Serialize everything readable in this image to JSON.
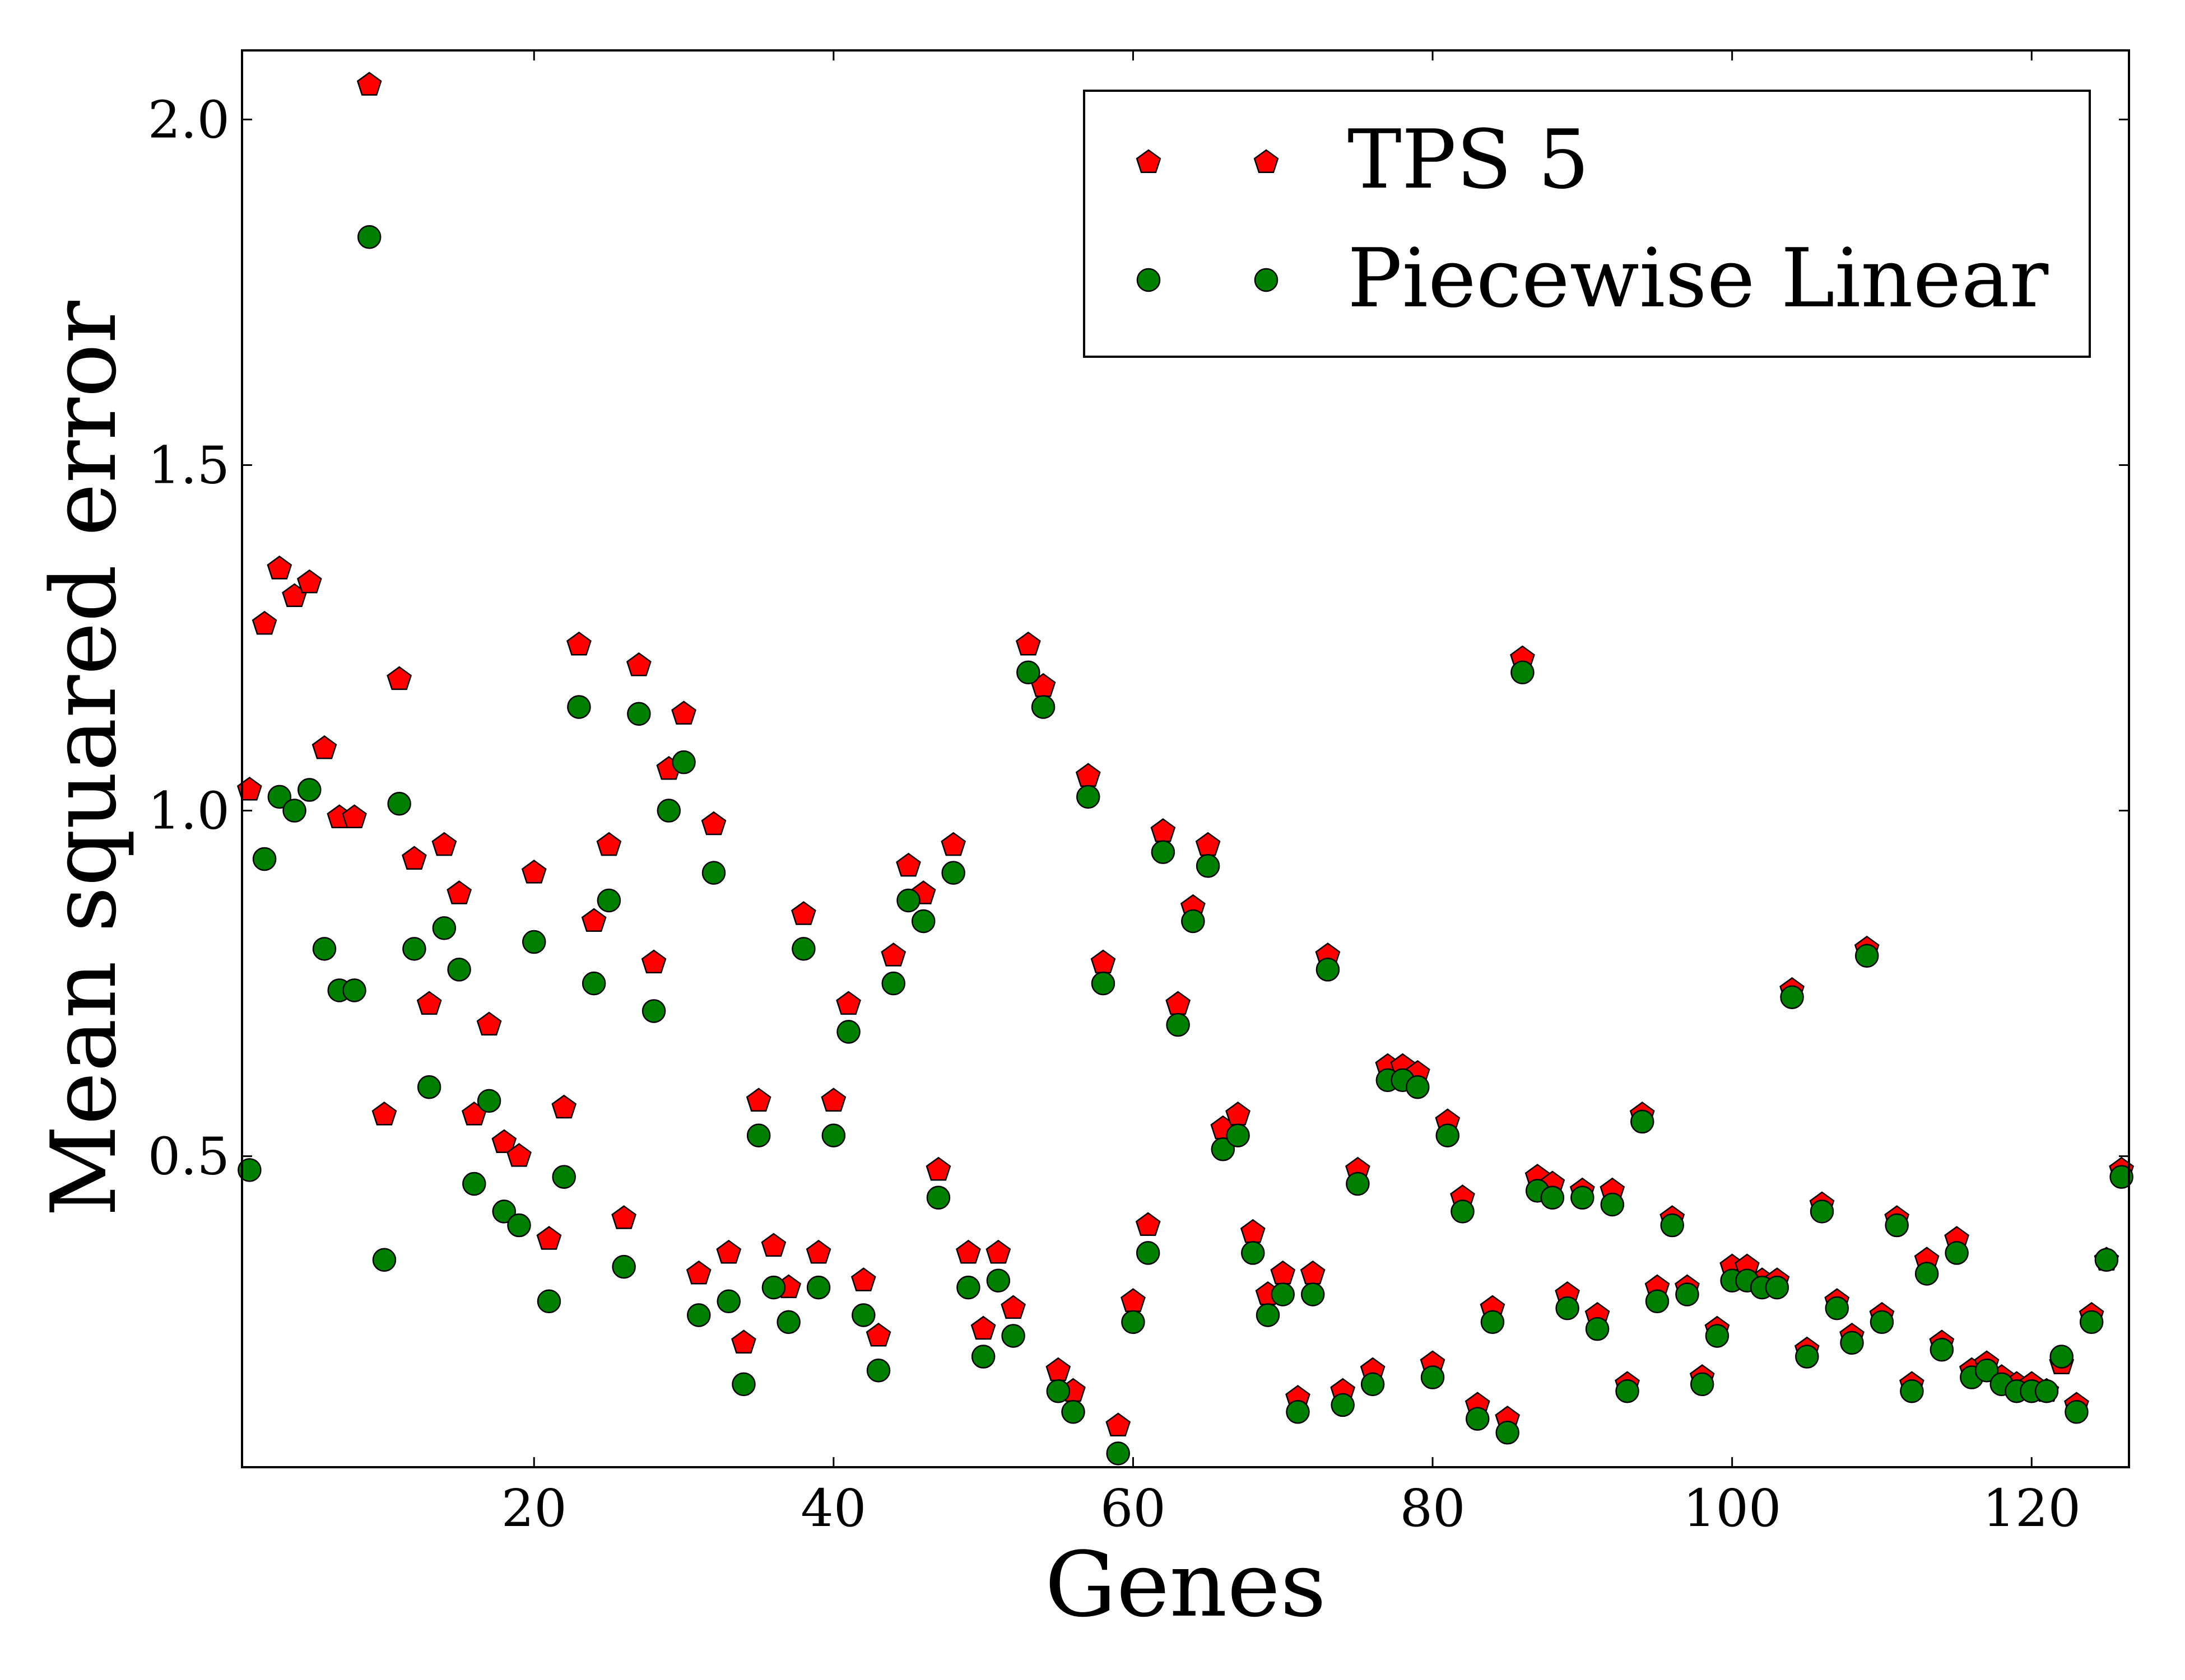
{
  "chart_data": {
    "type": "scatter",
    "xlabel": "Genes",
    "ylabel": "Mean squared error",
    "xlim": [
      0.5,
      126.5
    ],
    "ylim": [
      0.05,
      2.1
    ],
    "xticks": [
      20,
      40,
      60,
      80,
      100,
      120
    ],
    "yticks": [
      0.5,
      1.0,
      1.5,
      2.0
    ],
    "xtick_labels": [
      "20",
      "40",
      "60",
      "80",
      "100",
      "120"
    ],
    "ytick_labels": [
      "0.5",
      "1.0",
      "1.5",
      "2.0"
    ],
    "grid": false,
    "legend_position": "top-right",
    "series": [
      {
        "name": "TPS 5",
        "marker": "pentagon",
        "color": "#ff0000",
        "x": [
          1,
          2,
          3,
          4,
          5,
          6,
          7,
          8,
          9,
          10,
          11,
          12,
          13,
          14,
          15,
          16,
          17,
          18,
          19,
          20,
          21,
          22,
          23,
          24,
          25,
          26,
          27,
          28,
          29,
          30,
          31,
          32,
          33,
          34,
          35,
          36,
          37,
          38,
          39,
          40,
          41,
          42,
          43,
          44,
          45,
          46,
          47,
          48,
          49,
          50,
          51,
          52,
          53,
          54,
          55,
          56,
          57,
          58,
          59,
          60,
          61,
          62,
          63,
          64,
          65,
          66,
          67,
          68,
          69,
          70,
          71,
          72,
          73,
          74,
          75,
          76,
          77,
          78,
          79,
          80,
          81,
          82,
          83,
          84,
          85,
          86,
          87,
          88,
          89,
          90,
          91,
          92,
          93,
          94,
          95,
          96,
          97,
          98,
          99,
          100,
          101,
          102,
          103,
          104,
          105,
          106,
          107,
          108,
          109,
          110,
          111,
          112,
          113,
          114,
          115,
          116,
          117,
          118,
          119,
          120,
          121,
          122,
          123,
          124,
          125,
          126
        ],
        "y": [
          1.03,
          1.27,
          1.35,
          1.31,
          1.33,
          1.09,
          0.99,
          0.99,
          2.05,
          0.56,
          1.19,
          0.93,
          0.72,
          0.95,
          0.88,
          0.56,
          0.69,
          0.52,
          0.5,
          0.91,
          0.38,
          0.57,
          1.24,
          0.84,
          0.95,
          0.41,
          1.21,
          0.78,
          1.06,
          1.14,
          0.33,
          0.98,
          0.36,
          0.23,
          0.58,
          0.37,
          0.31,
          0.85,
          0.36,
          0.58,
          0.72,
          0.32,
          0.24,
          0.79,
          0.92,
          0.88,
          0.48,
          0.95,
          0.36,
          0.25,
          0.36,
          0.28,
          1.24,
          1.18,
          0.19,
          0.16,
          1.05,
          0.78,
          0.11,
          0.29,
          0.4,
          0.97,
          0.72,
          0.86,
          0.95,
          0.54,
          0.56,
          0.39,
          0.3,
          0.33,
          0.15,
          0.33,
          0.79,
          0.16,
          0.48,
          0.19,
          0.63,
          0.63,
          0.62,
          0.2,
          0.55,
          0.44,
          0.14,
          0.28,
          0.12,
          1.22,
          0.47,
          0.46,
          0.3,
          0.45,
          0.27,
          0.45,
          0.17,
          0.56,
          0.31,
          0.41,
          0.31,
          0.18,
          0.25,
          0.34,
          0.34,
          0.32,
          0.32,
          0.74,
          0.22,
          0.43,
          0.29,
          0.24,
          0.8,
          0.27,
          0.41,
          0.17,
          0.35,
          0.23,
          0.38,
          0.19,
          0.2,
          0.18,
          0.17,
          0.17,
          0.16,
          0.2,
          0.14,
          0.27,
          0.35,
          0.48
        ]
      },
      {
        "name": "Piecewise Linear",
        "marker": "circle",
        "color": "#008000",
        "x": [
          1,
          2,
          3,
          4,
          5,
          6,
          7,
          8,
          9,
          10,
          11,
          12,
          13,
          14,
          15,
          16,
          17,
          18,
          19,
          20,
          21,
          22,
          23,
          24,
          25,
          26,
          27,
          28,
          29,
          30,
          31,
          32,
          33,
          34,
          35,
          36,
          37,
          38,
          39,
          40,
          41,
          42,
          43,
          44,
          45,
          46,
          47,
          48,
          49,
          50,
          51,
          52,
          53,
          54,
          55,
          56,
          57,
          58,
          59,
          60,
          61,
          62,
          63,
          64,
          65,
          66,
          67,
          68,
          69,
          70,
          71,
          72,
          73,
          74,
          75,
          76,
          77,
          78,
          79,
          80,
          81,
          82,
          83,
          84,
          85,
          86,
          87,
          88,
          89,
          90,
          91,
          92,
          93,
          94,
          95,
          96,
          97,
          98,
          99,
          100,
          101,
          102,
          103,
          104,
          105,
          106,
          107,
          108,
          109,
          110,
          111,
          112,
          113,
          114,
          115,
          116,
          117,
          118,
          119,
          120,
          121,
          122,
          123,
          124,
          125,
          126
        ],
        "y": [
          0.48,
          0.93,
          1.02,
          1.0,
          1.03,
          0.8,
          0.74,
          0.74,
          1.83,
          0.35,
          1.01,
          0.8,
          0.6,
          0.83,
          0.77,
          0.46,
          0.58,
          0.42,
          0.4,
          0.81,
          0.29,
          0.47,
          1.15,
          0.75,
          0.87,
          0.34,
          1.14,
          0.71,
          1.0,
          1.07,
          0.27,
          0.91,
          0.29,
          0.17,
          0.53,
          0.31,
          0.26,
          0.8,
          0.31,
          0.53,
          0.68,
          0.27,
          0.19,
          0.75,
          0.87,
          0.84,
          0.44,
          0.91,
          0.31,
          0.21,
          0.32,
          0.24,
          1.2,
          1.15,
          0.16,
          0.13,
          1.02,
          0.75,
          0.07,
          0.26,
          0.36,
          0.94,
          0.69,
          0.84,
          0.92,
          0.51,
          0.53,
          0.36,
          0.27,
          0.3,
          0.13,
          0.3,
          0.77,
          0.14,
          0.46,
          0.17,
          0.61,
          0.61,
          0.6,
          0.18,
          0.53,
          0.42,
          0.12,
          0.26,
          0.1,
          1.2,
          0.45,
          0.44,
          0.28,
          0.44,
          0.25,
          0.43,
          0.16,
          0.55,
          0.29,
          0.4,
          0.3,
          0.17,
          0.24,
          0.32,
          0.32,
          0.31,
          0.31,
          0.73,
          0.21,
          0.42,
          0.28,
          0.23,
          0.79,
          0.26,
          0.4,
          0.16,
          0.33,
          0.22,
          0.36,
          0.18,
          0.19,
          0.17,
          0.16,
          0.16,
          0.16,
          0.21,
          0.13,
          0.26,
          0.35,
          0.47
        ]
      }
    ]
  }
}
